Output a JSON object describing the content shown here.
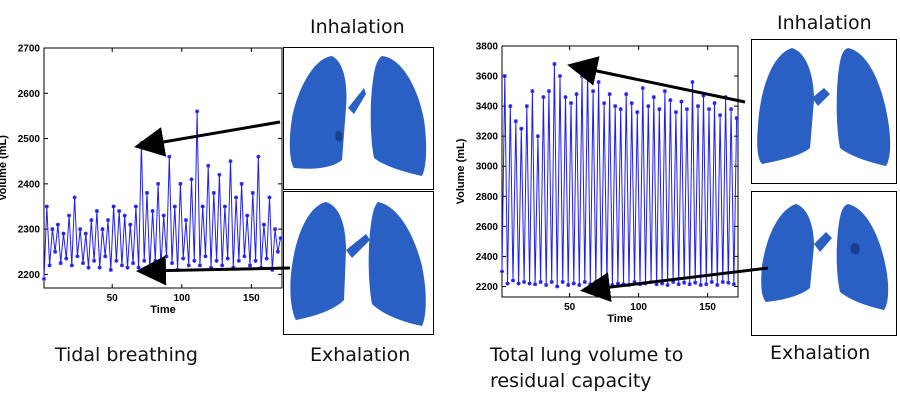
{
  "left": {
    "caption": "Tidal breathing",
    "inhalation_label": "Inhalation",
    "exhalation_label": "Exhalation"
  },
  "right": {
    "caption_line1": "Total lung volume to",
    "caption_line2": "residual capacity",
    "inhalation_label": "Inhalation",
    "exhalation_label": "Exhalation"
  },
  "colors": {
    "series": "#2020ee",
    "lung": "#2a5fc4",
    "arrow": "#000000"
  },
  "chart_data": [
    {
      "type": "line",
      "xlabel": "Time",
      "ylabel": "Volume (mL)",
      "xlim": [
        1,
        172
      ],
      "ylim": [
        2170,
        2700
      ],
      "xticks": [
        50,
        100,
        150
      ],
      "yticks": [
        2200,
        2300,
        2400,
        2500,
        2600,
        2700
      ],
      "series": [
        {
          "x": [
            1,
            3,
            5,
            7,
            9,
            11,
            13,
            15,
            17,
            19,
            21,
            23,
            25,
            27,
            29,
            31,
            33,
            35,
            37,
            39,
            41,
            43,
            45,
            47,
            49,
            51,
            53,
            55,
            57,
            59,
            61,
            63,
            65,
            67,
            69,
            71,
            73,
            75,
            77,
            79,
            81,
            83,
            85,
            87,
            89,
            91,
            93,
            95,
            97,
            99,
            101,
            103,
            105,
            107,
            109,
            111,
            113,
            115,
            117,
            119,
            121,
            123,
            125,
            127,
            129,
            131,
            133,
            135,
            137,
            139,
            141,
            143,
            145,
            147,
            149,
            151,
            153,
            155,
            157,
            159,
            161,
            163,
            165,
            167,
            169,
            171
          ],
          "y": [
            2190,
            2350,
            2220,
            2300,
            2250,
            2310,
            2225,
            2290,
            2235,
            2330,
            2220,
            2370,
            2240,
            2300,
            2225,
            2290,
            2215,
            2320,
            2230,
            2340,
            2215,
            2300,
            2240,
            2320,
            2210,
            2350,
            2230,
            2340,
            2220,
            2330,
            2215,
            2310,
            2225,
            2350,
            2215,
            2490,
            2230,
            2380,
            2210,
            2340,
            2230,
            2400,
            2215,
            2330,
            2240,
            2460,
            2225,
            2350,
            2210,
            2400,
            2235,
            2320,
            2220,
            2410,
            2230,
            2560,
            2220,
            2350,
            2240,
            2440,
            2215,
            2380,
            2230,
            2420,
            2220,
            2350,
            2235,
            2450,
            2215,
            2370,
            2230,
            2400,
            2240,
            2330,
            2220,
            2380,
            2230,
            2460,
            2215,
            2310,
            2235,
            2370,
            2210,
            2300,
            2250,
            2280
          ]
        }
      ]
    },
    {
      "type": "line",
      "xlabel": "Time",
      "ylabel": "Volume (mL)",
      "xlim": [
        1,
        172
      ],
      "ylim": [
        2130,
        3800
      ],
      "xticks": [
        50,
        100,
        150
      ],
      "yticks": [
        2200,
        2400,
        2600,
        2800,
        3000,
        3200,
        3400,
        3600,
        3800
      ],
      "series": [
        {
          "x": [
            1,
            3,
            5,
            7,
            9,
            11,
            13,
            15,
            17,
            19,
            21,
            23,
            25,
            27,
            29,
            31,
            33,
            35,
            37,
            39,
            41,
            43,
            45,
            47,
            49,
            51,
            53,
            55,
            57,
            59,
            61,
            63,
            65,
            67,
            69,
            71,
            73,
            75,
            77,
            79,
            81,
            83,
            85,
            87,
            89,
            91,
            93,
            95,
            97,
            99,
            101,
            103,
            105,
            107,
            109,
            111,
            113,
            115,
            117,
            119,
            121,
            123,
            125,
            127,
            129,
            131,
            133,
            135,
            137,
            139,
            141,
            143,
            145,
            147,
            149,
            151,
            153,
            155,
            157,
            159,
            161,
            163,
            165,
            167,
            169,
            171
          ],
          "y": [
            2300,
            3600,
            2220,
            3400,
            2240,
            3300,
            2220,
            3250,
            2230,
            3400,
            2220,
            3500,
            2215,
            3200,
            2230,
            3460,
            2210,
            3500,
            2230,
            3680,
            2200,
            3600,
            2230,
            3460,
            2210,
            3420,
            2220,
            3480,
            2210,
            3600,
            2230,
            3630,
            2215,
            3500,
            2230,
            3560,
            2215,
            3420,
            2220,
            3480,
            2210,
            3400,
            2220,
            3380,
            2215,
            3480,
            2210,
            3420,
            2230,
            3360,
            2215,
            3520,
            2220,
            3400,
            2230,
            3460,
            2215,
            3380,
            2220,
            3500,
            2210,
            3440,
            2230,
            3360,
            2215,
            3430,
            2225,
            3380,
            2215,
            3560,
            2225,
            3400,
            2210,
            3470,
            2215,
            3380,
            2230,
            3420,
            2210,
            3340,
            2230,
            3460,
            2225,
            3380,
            2215,
            3320
          ]
        }
      ]
    }
  ]
}
